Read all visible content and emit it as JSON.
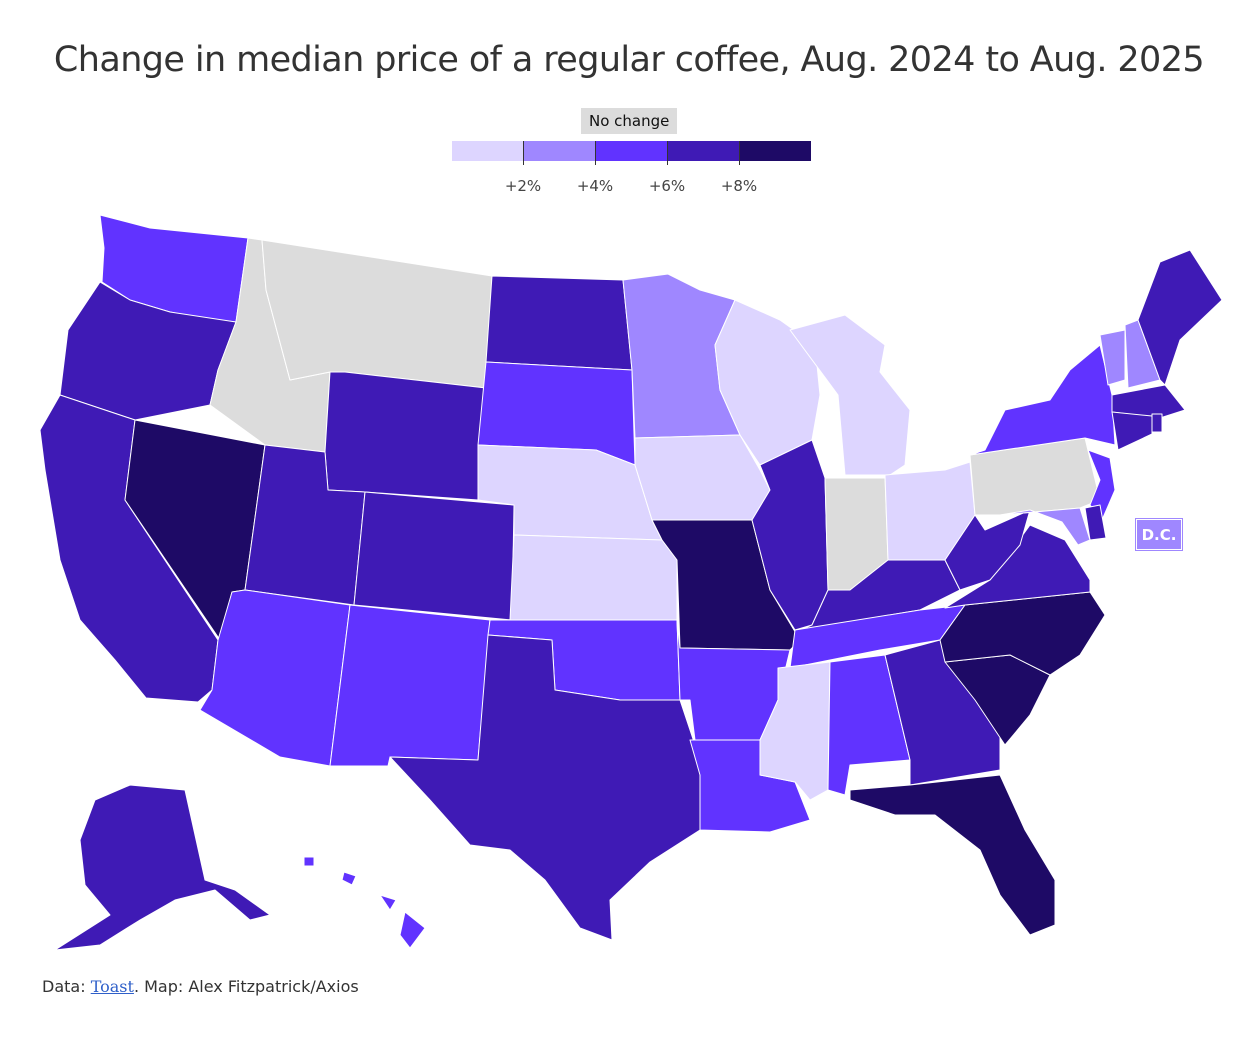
{
  "title": "Change in median price of a regular coffee, Aug. 2024 to Aug. 2025",
  "legend": {
    "no_change_label": "No change",
    "ticks": [
      "+2%",
      "+4%",
      "+6%",
      "+8%"
    ],
    "colors": [
      "#ddd5ff",
      "#9f87ff",
      "#6133ff",
      "#3f1ab5",
      "#1e0a66"
    ]
  },
  "no_change_color": "#dcdcdc",
  "states": {
    "WA": "6",
    "OR": "8",
    "CA": "8",
    "NV": "10",
    "ID": "nc",
    "MT": "nc",
    "WY": "8",
    "UT": "8",
    "AZ": "6",
    "CO": "8",
    "NM": "6",
    "ND": "8",
    "SD": "6",
    "NE": "2",
    "KS": "2",
    "OK": "6",
    "TX": "8",
    "MN": "4",
    "IA": "2",
    "MO": "10",
    "AR": "6",
    "LA": "6",
    "WI": "2",
    "IL": "8",
    "MI": "2",
    "IN": "nc",
    "OH": "2",
    "KY": "8",
    "TN": "6",
    "MS": "2",
    "AL": "6",
    "GA": "8",
    "FL": "10",
    "SC": "10",
    "NC": "10",
    "VA": "8",
    "WV": "8",
    "PA": "nc",
    "NY": "6",
    "VT": "4",
    "NH": "4",
    "ME": "8",
    "MA": "8",
    "RI": "8",
    "CT": "8",
    "NJ": "6",
    "DE": "8",
    "MD": "4",
    "AK": "8",
    "HI": "6"
  },
  "dc": {
    "label": "D.C.",
    "color": "#9f87ff"
  },
  "source": {
    "prefix": "Data: ",
    "link_text": "Toast",
    "suffix": ". Map: Alex Fitzpatrick/Axios"
  }
}
